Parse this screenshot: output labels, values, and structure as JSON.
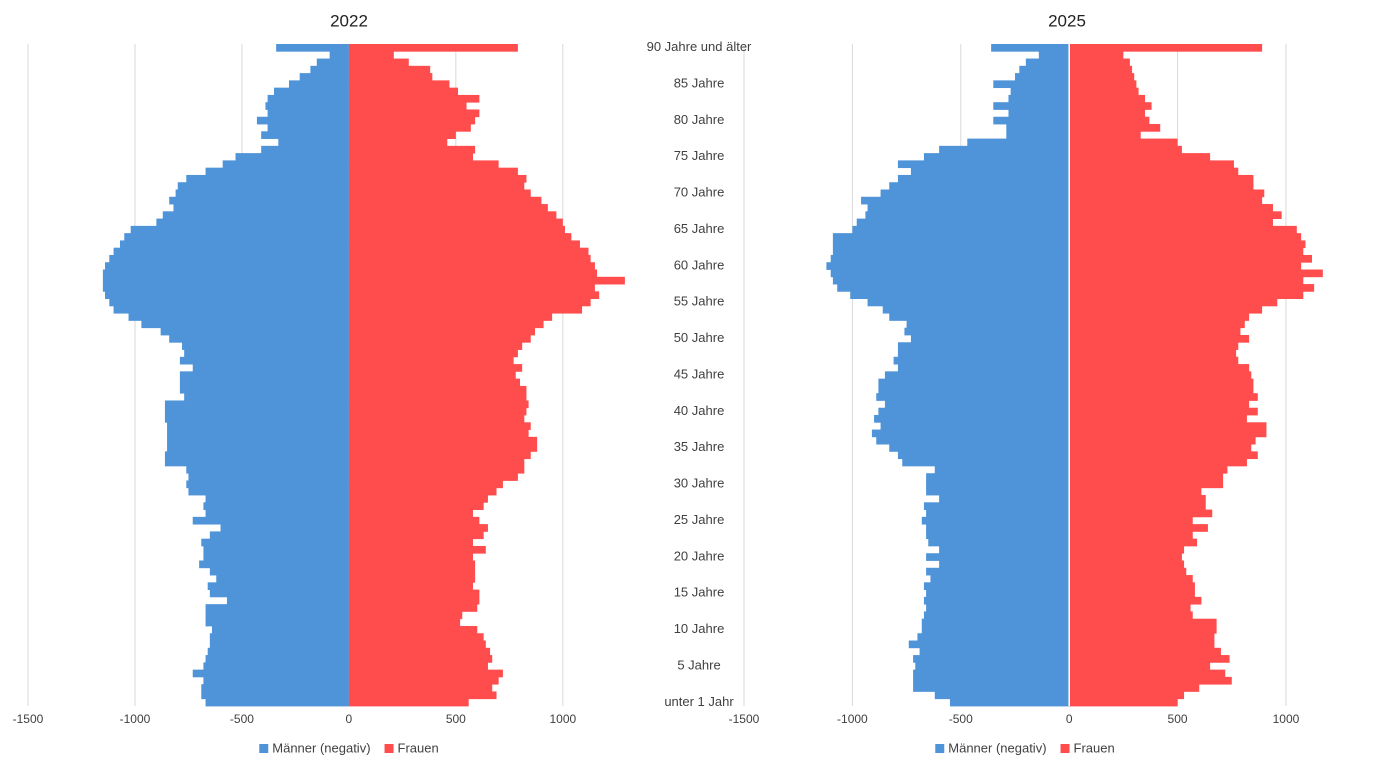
{
  "chart_data": [
    {
      "type": "bar",
      "orientation": "horizontal",
      "title": "2022",
      "xlim": [
        -1500,
        1300
      ],
      "xticks": [
        -1500,
        -1000,
        -500,
        0,
        500,
        1000
      ],
      "grid": true,
      "legend": "bottom",
      "series": [
        {
          "name": "Männer (negativ)",
          "color": "#4f94d8",
          "values": [
            -670,
            -690,
            -690,
            -680,
            -730,
            -680,
            -670,
            -660,
            -650,
            -650,
            -640,
            -670,
            -670,
            -670,
            -570,
            -650,
            -660,
            -620,
            -650,
            -700,
            -680,
            -680,
            -690,
            -650,
            -600,
            -730,
            -670,
            -680,
            -670,
            -750,
            -760,
            -750,
            -760,
            -860,
            -860,
            -850,
            -850,
            -850,
            -850,
            -860,
            -860,
            -860,
            -770,
            -790,
            -790,
            -790,
            -730,
            -790,
            -770,
            -780,
            -840,
            -880,
            -970,
            -1030,
            -1100,
            -1120,
            -1140,
            -1150,
            -1150,
            -1150,
            -1140,
            -1120,
            -1100,
            -1070,
            -1050,
            -1020,
            -900,
            -870,
            -820,
            -840,
            -810,
            -800,
            -760,
            -670,
            -590,
            -530,
            -410,
            -330,
            -410,
            -380,
            -430,
            -380,
            -390,
            -380,
            -350,
            -280,
            -230,
            -180,
            -150,
            -90,
            -340
          ]
        },
        {
          "name": "Frauen",
          "color": "#ff4c4c",
          "values": [
            560,
            690,
            670,
            700,
            720,
            650,
            670,
            660,
            640,
            630,
            600,
            520,
            530,
            600,
            610,
            610,
            580,
            590,
            590,
            590,
            580,
            640,
            580,
            630,
            650,
            610,
            580,
            630,
            650,
            690,
            720,
            790,
            820,
            820,
            850,
            880,
            880,
            840,
            850,
            820,
            830,
            840,
            830,
            830,
            800,
            780,
            810,
            770,
            790,
            810,
            850,
            870,
            910,
            950,
            1090,
            1130,
            1170,
            1150,
            1290,
            1160,
            1150,
            1130,
            1120,
            1080,
            1040,
            1010,
            1000,
            970,
            930,
            900,
            850,
            820,
            830,
            790,
            700,
            580,
            590,
            460,
            500,
            570,
            590,
            610,
            550,
            610,
            510,
            470,
            390,
            380,
            280,
            210,
            790
          ]
        }
      ]
    },
    {
      "type": "bar",
      "orientation": "horizontal",
      "title": "2025",
      "categories": [
        "unter  1 Jahr",
        null,
        null,
        null,
        null,
        "5 Jahre",
        null,
        null,
        null,
        null,
        "10 Jahre",
        null,
        null,
        null,
        null,
        "15 Jahre",
        null,
        null,
        null,
        null,
        "20 Jahre",
        null,
        null,
        null,
        null,
        "25 Jahre",
        null,
        null,
        null,
        null,
        "30 Jahre",
        null,
        null,
        null,
        null,
        "35 Jahre",
        null,
        null,
        null,
        null,
        "40 Jahre",
        null,
        null,
        null,
        null,
        "45 Jahre",
        null,
        null,
        null,
        null,
        "50 Jahre",
        null,
        null,
        null,
        null,
        "55 Jahre",
        null,
        null,
        null,
        null,
        "60 Jahre",
        null,
        null,
        null,
        null,
        "65 Jahre",
        null,
        null,
        null,
        null,
        "70 Jahre",
        null,
        null,
        null,
        null,
        "75 Jahre",
        null,
        null,
        null,
        null,
        "80 Jahre",
        null,
        null,
        null,
        null,
        "85 Jahre",
        null,
        null,
        null,
        null,
        "90 Jahre und älter"
      ],
      "xlim": [
        -1500,
        1300
      ],
      "xticks": [
        -1500,
        -1000,
        -500,
        0,
        500,
        1000
      ],
      "grid": true,
      "legend": "bottom",
      "series": [
        {
          "name": "Männer (negativ)",
          "color": "#4f94d8",
          "values": [
            -550,
            -620,
            -720,
            -720,
            -720,
            -710,
            -720,
            -690,
            -740,
            -700,
            -680,
            -680,
            -670,
            -660,
            -670,
            -660,
            -670,
            -640,
            -660,
            -600,
            -660,
            -600,
            -650,
            -660,
            -660,
            -680,
            -660,
            -670,
            -600,
            -660,
            -660,
            -660,
            -620,
            -770,
            -790,
            -830,
            -890,
            -910,
            -870,
            -900,
            -880,
            -850,
            -890,
            -880,
            -880,
            -850,
            -790,
            -810,
            -790,
            -790,
            -730,
            -760,
            -750,
            -830,
            -860,
            -930,
            -1010,
            -1070,
            -1090,
            -1100,
            -1120,
            -1100,
            -1090,
            -1090,
            -1090,
            -1000,
            -980,
            -940,
            -930,
            -960,
            -870,
            -830,
            -790,
            -730,
            -790,
            -670,
            -600,
            -470,
            -290,
            -290,
            -350,
            -280,
            -350,
            -280,
            -270,
            -350,
            -250,
            -230,
            -200,
            -140,
            -360
          ]
        },
        {
          "name": "Frauen",
          "color": "#ff4c4c",
          "values": [
            500,
            530,
            600,
            750,
            720,
            650,
            740,
            700,
            670,
            670,
            680,
            680,
            570,
            560,
            610,
            580,
            580,
            570,
            540,
            530,
            520,
            530,
            590,
            570,
            640,
            570,
            660,
            630,
            630,
            610,
            710,
            710,
            730,
            820,
            870,
            840,
            860,
            910,
            910,
            820,
            870,
            830,
            870,
            850,
            850,
            840,
            830,
            780,
            770,
            780,
            830,
            790,
            810,
            830,
            890,
            960,
            1080,
            1130,
            1080,
            1170,
            1070,
            1120,
            1080,
            1090,
            1070,
            1050,
            940,
            980,
            940,
            890,
            900,
            850,
            850,
            780,
            760,
            650,
            520,
            500,
            330,
            420,
            370,
            350,
            380,
            350,
            320,
            310,
            300,
            290,
            280,
            250,
            890
          ]
        }
      ]
    }
  ]
}
